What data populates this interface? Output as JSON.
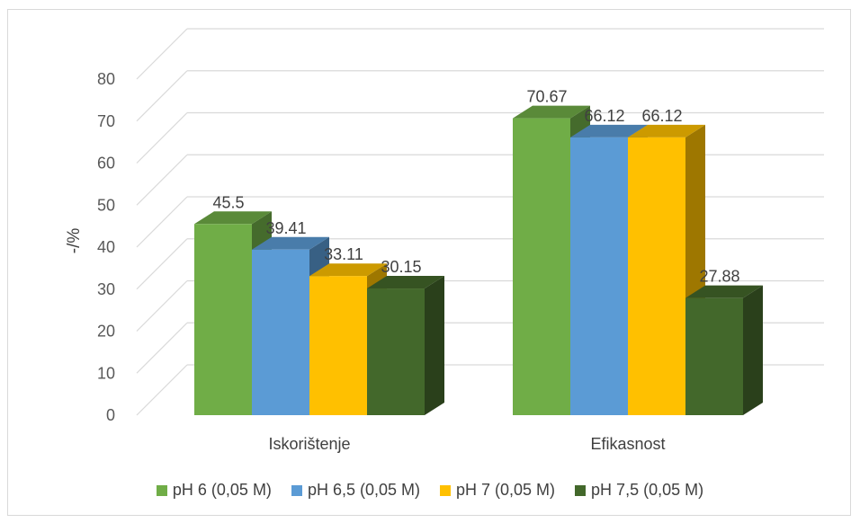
{
  "chart_data": {
    "type": "bar",
    "variant": "3d-clustered-column",
    "categories": [
      "Iskorištenje",
      "Efikasnost"
    ],
    "series": [
      {
        "name": "pH 6 (0,05 M)",
        "values": [
          45.5,
          70.67
        ],
        "color": "#70ad47",
        "label_text": [
          "45.5",
          "70.67"
        ]
      },
      {
        "name": "pH 6,5 (0,05 M)",
        "values": [
          39.41,
          66.12
        ],
        "color": "#5b9bd5",
        "label_text": [
          "39.41",
          "66.12"
        ]
      },
      {
        "name": "pH 7 (0,05 M)",
        "values": [
          33.11,
          66.12
        ],
        "color": "#ffc000",
        "label_text": [
          "33.11",
          "66.12"
        ]
      },
      {
        "name": "pH 7,5 (0,05 M)",
        "values": [
          30.15,
          27.88
        ],
        "color": "#43682b",
        "label_text": [
          "30.15",
          "27.88"
        ]
      }
    ],
    "title": "",
    "xlabel": "",
    "ylabel": "-/%",
    "ylim": [
      0,
      80
    ],
    "yticks": [
      0,
      10,
      20,
      30,
      40,
      50,
      60,
      70,
      80
    ],
    "grid": true,
    "legend_position": "bottom"
  }
}
